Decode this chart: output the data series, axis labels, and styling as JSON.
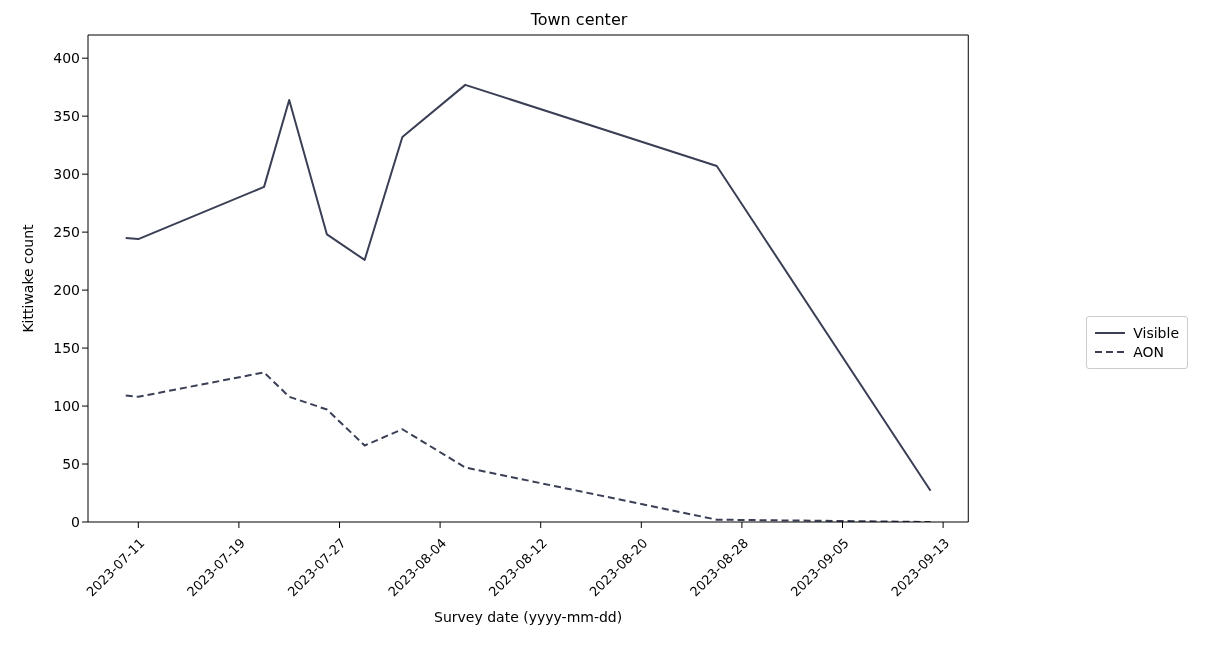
{
  "chart_data": {
    "type": "line",
    "title": "Town center",
    "xlabel": "Survey date (yyyy-mm-dd)",
    "ylabel": "Kittiwake count",
    "x": [
      "2023-07-10",
      "2023-07-11",
      "2023-07-21",
      "2023-07-23",
      "2023-07-26",
      "2023-07-29",
      "2023-08-01",
      "2023-08-06",
      "2023-08-26",
      "2023-09-12"
    ],
    "series": [
      {
        "name": "Visible",
        "color": "#3a3f55",
        "line_style": "solid",
        "values": [
          245,
          244,
          289,
          364,
          248,
          226,
          332,
          377,
          307,
          27
        ]
      },
      {
        "name": "AON",
        "color": "#3a3f55",
        "line_style": "dashed",
        "values": [
          109,
          108,
          129,
          108,
          97,
          66,
          80,
          47,
          2,
          0
        ]
      }
    ],
    "xlim": [
      "2023-07-07",
      "2023-09-15"
    ],
    "xticks": [
      "2023-07-11",
      "2023-07-19",
      "2023-07-27",
      "2023-08-04",
      "2023-08-12",
      "2023-08-20",
      "2023-08-28",
      "2023-09-05",
      "2023-09-13"
    ],
    "ylim": [
      0,
      420
    ],
    "yticks": [
      0,
      50,
      100,
      150,
      200,
      250,
      300,
      350,
      400
    ],
    "grid": false,
    "legend": "right",
    "marker": "none"
  }
}
